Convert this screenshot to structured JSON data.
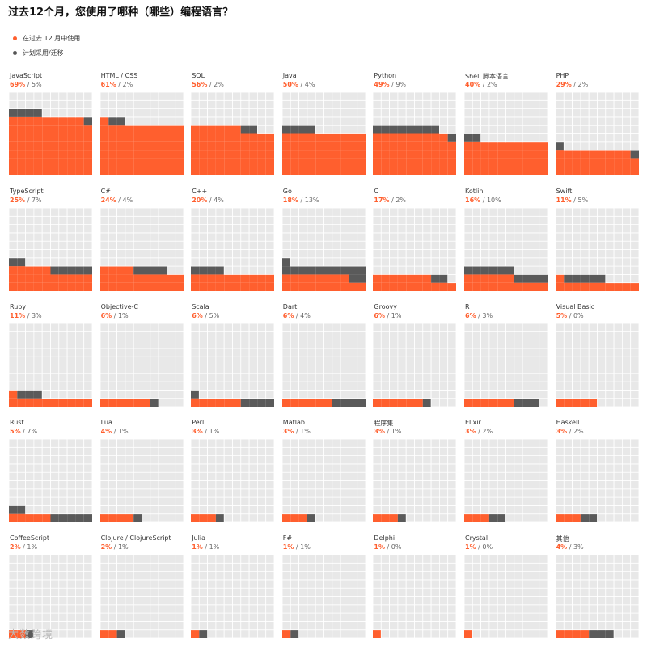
{
  "title": "过去12个月，您使用了哪种（哪些）编程语言？",
  "legend": [
    {
      "label": "在过去 12 月中使用",
      "color": "#ff5f2e"
    },
    {
      "label": "计划采用/迁移",
      "color": "#555555"
    }
  ],
  "colors": {
    "used": "#ff5f2e",
    "planned": "#5a5a5a",
    "empty": "#e8e8e8",
    "gridline": "#ffffff"
  },
  "watermark": "大数跨境",
  "chart_data": {
    "type": "waffle",
    "title": "过去12个月，您使用了哪种（哪些）编程语言？",
    "unit": "%",
    "series": [
      {
        "name": "在过去 12 月中使用",
        "key": "used"
      },
      {
        "name": "计划采用/迁移",
        "key": "plan"
      }
    ],
    "languages": [
      {
        "name": "JavaScript",
        "used": 69,
        "plan": 5
      },
      {
        "name": "HTML / CSS",
        "used": 61,
        "plan": 2
      },
      {
        "name": "SQL",
        "used": 56,
        "plan": 2
      },
      {
        "name": "Java",
        "used": 50,
        "plan": 4
      },
      {
        "name": "Python",
        "used": 49,
        "plan": 9
      },
      {
        "name": "Shell 脚本语言",
        "used": 40,
        "plan": 2
      },
      {
        "name": "PHP",
        "used": 29,
        "plan": 2
      },
      {
        "name": "TypeScript",
        "used": 25,
        "plan": 7
      },
      {
        "name": "C#",
        "used": 24,
        "plan": 4
      },
      {
        "name": "C++",
        "used": 20,
        "plan": 4
      },
      {
        "name": "Go",
        "used": 18,
        "plan": 13
      },
      {
        "name": "C",
        "used": 17,
        "plan": 2
      },
      {
        "name": "Kotlin",
        "used": 16,
        "plan": 10
      },
      {
        "name": "Swift",
        "used": 11,
        "plan": 5
      },
      {
        "name": "Ruby",
        "used": 11,
        "plan": 3
      },
      {
        "name": "Objective-C",
        "used": 6,
        "plan": 1
      },
      {
        "name": "Scala",
        "used": 6,
        "plan": 5
      },
      {
        "name": "Dart",
        "used": 6,
        "plan": 4
      },
      {
        "name": "Groovy",
        "used": 6,
        "plan": 1
      },
      {
        "name": "R",
        "used": 6,
        "plan": 3
      },
      {
        "name": "Visual Basic",
        "used": 5,
        "plan": 0
      },
      {
        "name": "Rust",
        "used": 5,
        "plan": 7
      },
      {
        "name": "Lua",
        "used": 4,
        "plan": 1
      },
      {
        "name": "Perl",
        "used": 3,
        "plan": 1
      },
      {
        "name": "Matlab",
        "used": 3,
        "plan": 1
      },
      {
        "name": "程序集",
        "used": 3,
        "plan": 1
      },
      {
        "name": "Elixir",
        "used": 3,
        "plan": 2
      },
      {
        "name": "Haskell",
        "used": 3,
        "plan": 2
      },
      {
        "name": "CoffeeScript",
        "used": 2,
        "plan": 1
      },
      {
        "name": "Clojure / ClojureScript",
        "used": 2,
        "plan": 1
      },
      {
        "name": "Julia",
        "used": 1,
        "plan": 1
      },
      {
        "name": "F#",
        "used": 1,
        "plan": 1
      },
      {
        "name": "Delphi",
        "used": 1,
        "plan": 0
      },
      {
        "name": "Crystal",
        "used": 1,
        "plan": 0
      },
      {
        "name": "其他",
        "used": 4,
        "plan": 3
      }
    ]
  }
}
